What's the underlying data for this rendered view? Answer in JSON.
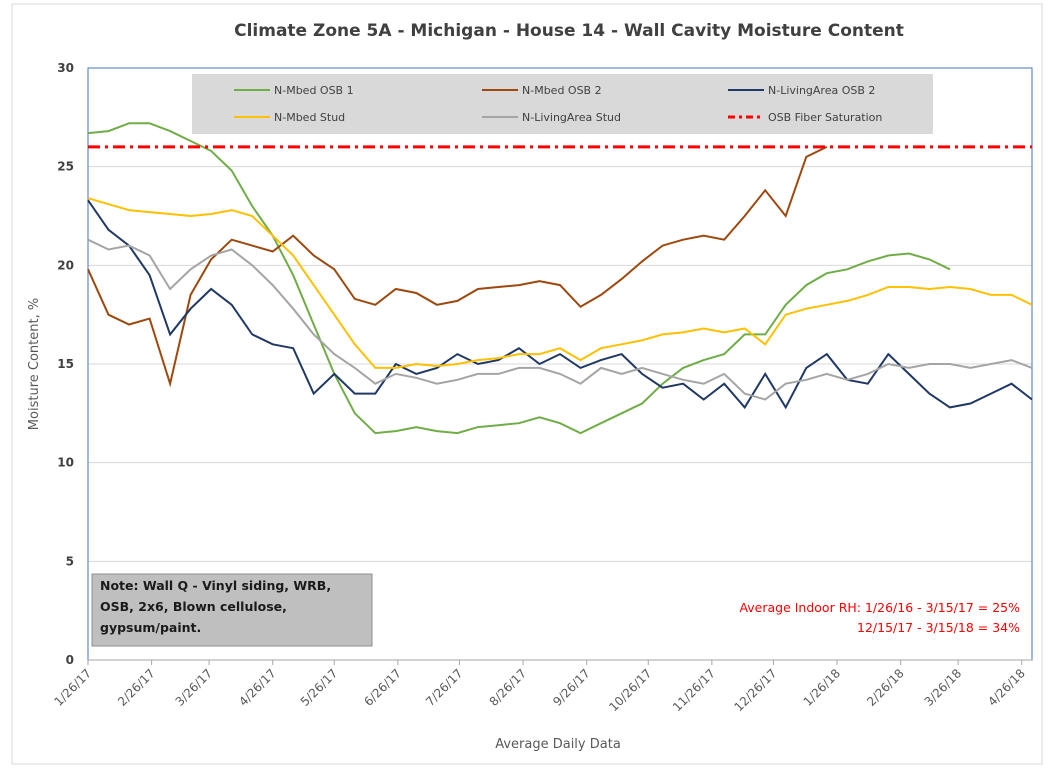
{
  "chart_data": {
    "type": "line",
    "title": "Climate Zone 5A - Michigan - House 14 - Wall Cavity Moisture Content",
    "x_label": "Average Daily Data",
    "y_label": "Moisture Content, %",
    "x": [
      "1/26/17",
      "2/5/17",
      "2/15/17",
      "2/25/17",
      "3/7/17",
      "3/17/17",
      "3/27/17",
      "4/6/17",
      "4/16/17",
      "4/26/17",
      "5/6/17",
      "5/16/17",
      "5/26/17",
      "6/5/17",
      "6/15/17",
      "6/25/17",
      "7/5/17",
      "7/15/17",
      "7/25/17",
      "8/4/17",
      "8/14/17",
      "8/24/17",
      "9/3/17",
      "9/13/17",
      "9/23/17",
      "10/3/17",
      "10/13/17",
      "10/23/17",
      "11/2/17",
      "11/12/17",
      "11/22/17",
      "12/2/17",
      "12/12/17",
      "12/22/17",
      "1/1/18",
      "1/11/18",
      "1/21/18",
      "1/31/18",
      "2/10/18",
      "2/20/18",
      "3/2/18",
      "3/12/18",
      "3/22/18",
      "4/1/18",
      "4/11/18",
      "4/21/18",
      "5/1/18"
    ],
    "xlim": [
      "1/26/17",
      "5/1/18"
    ],
    "xticks": [
      "1/26/17",
      "2/26/17",
      "3/26/17",
      "4/26/17",
      "5/26/17",
      "6/26/17",
      "7/26/17",
      "8/26/17",
      "9/26/17",
      "10/26/17",
      "11/26/17",
      "12/26/17",
      "1/26/18",
      "2/26/18",
      "3/26/18",
      "4/26/18"
    ],
    "ylim": [
      0,
      30
    ],
    "yticks": [
      0,
      5,
      10,
      15,
      20,
      25,
      30
    ],
    "grid": true,
    "series": [
      {
        "name": "N-Mbed OSB 1",
        "color": "#70ad47",
        "values": [
          26.7,
          26.8,
          27.2,
          27.2,
          26.8,
          26.3,
          25.8,
          24.8,
          23.0,
          21.5,
          19.5,
          17.0,
          14.5,
          12.5,
          11.5,
          11.6,
          11.8,
          11.6,
          11.5,
          11.8,
          11.9,
          12.0,
          12.3,
          12.0,
          11.5,
          12.0,
          12.5,
          13.0,
          14.0,
          14.8,
          15.2,
          15.5,
          16.5,
          16.5,
          18.0,
          19.0,
          19.6,
          19.8,
          20.2,
          20.5,
          20.6,
          20.3,
          19.8,
          null,
          null,
          null,
          null
        ]
      },
      {
        "name": "N-Mbed OSB 2",
        "color": "#9e480e",
        "values": [
          19.8,
          17.5,
          17.0,
          17.3,
          14.0,
          18.5,
          20.3,
          21.3,
          21.0,
          20.7,
          21.5,
          20.5,
          19.8,
          18.3,
          18.0,
          18.8,
          18.6,
          18.0,
          18.2,
          18.8,
          18.9,
          19.0,
          19.2,
          19.0,
          17.9,
          18.5,
          19.3,
          20.2,
          21.0,
          21.3,
          21.5,
          21.3,
          22.5,
          23.8,
          22.5,
          25.5,
          26.0,
          null,
          null,
          null,
          null,
          null,
          null,
          null,
          null,
          null,
          null
        ]
      },
      {
        "name": "N-LivingArea OSB 2",
        "color": "#203864",
        "values": [
          23.3,
          21.8,
          21.0,
          19.5,
          16.5,
          17.8,
          18.8,
          18.0,
          16.5,
          16.0,
          15.8,
          13.5,
          14.5,
          13.5,
          13.5,
          15.0,
          14.5,
          14.8,
          15.5,
          15.0,
          15.2,
          15.8,
          15.0,
          15.5,
          14.8,
          15.2,
          15.5,
          14.5,
          13.8,
          14.0,
          13.2,
          14.0,
          12.8,
          14.5,
          12.8,
          14.8,
          15.5,
          14.2,
          14.0,
          15.5,
          14.5,
          13.5,
          12.8,
          13.0,
          13.5,
          14.0,
          13.2
        ]
      },
      {
        "name": "N-Mbed Stud",
        "color": "#ffc000",
        "values": [
          23.4,
          23.1,
          22.8,
          22.7,
          22.6,
          22.5,
          22.6,
          22.8,
          22.5,
          21.5,
          20.5,
          19.0,
          17.5,
          16.0,
          14.8,
          14.8,
          15.0,
          14.9,
          15.0,
          15.2,
          15.3,
          15.5,
          15.5,
          15.8,
          15.2,
          15.8,
          16.0,
          16.2,
          16.5,
          16.6,
          16.8,
          16.6,
          16.8,
          16.0,
          17.5,
          17.8,
          18.0,
          18.2,
          18.5,
          18.9,
          18.9,
          18.8,
          18.9,
          18.8,
          18.5,
          18.5,
          18.0
        ]
      },
      {
        "name": "N-LivingArea Stud",
        "color": "#a5a5a5",
        "values": [
          21.3,
          20.8,
          21.0,
          20.5,
          18.8,
          19.8,
          20.5,
          20.8,
          20.0,
          19.0,
          17.8,
          16.5,
          15.5,
          14.8,
          14.0,
          14.5,
          14.3,
          14.0,
          14.2,
          14.5,
          14.5,
          14.8,
          14.8,
          14.5,
          14.0,
          14.8,
          14.5,
          14.8,
          14.5,
          14.2,
          14.0,
          14.5,
          13.5,
          13.2,
          14.0,
          14.2,
          14.5,
          14.2,
          14.5,
          15.0,
          14.8,
          15.0,
          15.0,
          14.8,
          15.0,
          15.2,
          14.8
        ]
      },
      {
        "name": "OSB Fiber Saturation",
        "color": "#ff0000",
        "value": 26
      }
    ],
    "note": [
      "Note: Wall Q - Vinyl siding, WRB,",
      "OSB, 2x6, Blown cellulose,",
      "gypsum/paint."
    ],
    "annotation": [
      "Average Indoor RH: 1/26/16 - 3/15/17 = 25%",
      "12/15/17 - 3/15/18 = 34%"
    ]
  }
}
